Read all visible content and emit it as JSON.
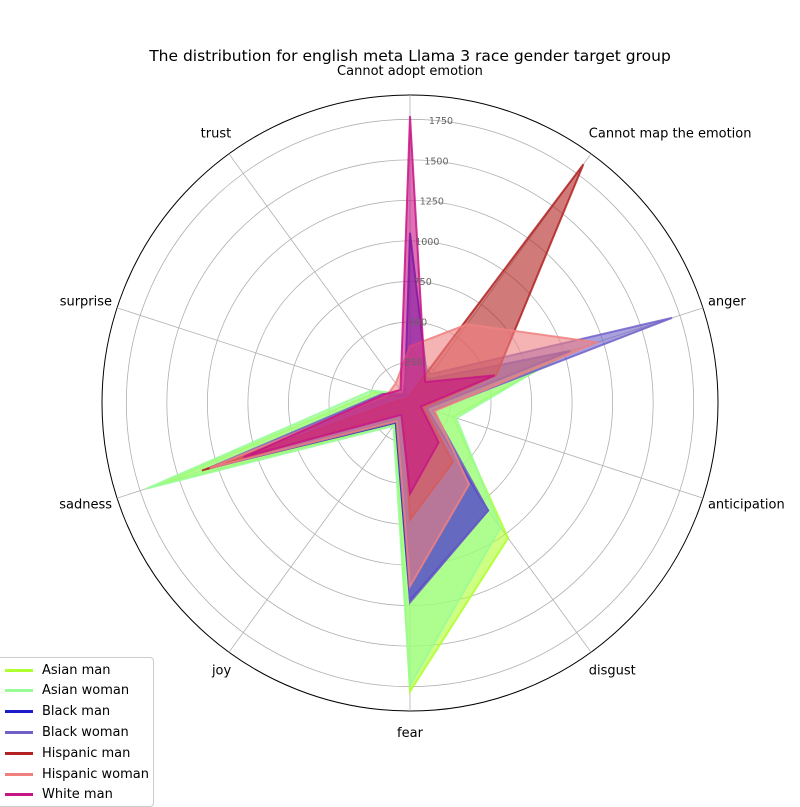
{
  "chart_data": {
    "type": "radar",
    "title": "The distribution for english meta Llama 3 race gender target group",
    "categories": [
      "Cannot adopt emotion",
      "Cannot map the emotion",
      "anger",
      "anticipation",
      "disgust",
      "fear",
      "joy",
      "sadness",
      "surprise",
      "trust"
    ],
    "rticks": [
      250,
      500,
      750,
      1000,
      1250,
      1500,
      1750
    ],
    "rtick_labels": [
      "250",
      "500",
      "750",
      "1000",
      "1250",
      "1500",
      "1750"
    ],
    "rmax": 1900,
    "grid": true,
    "legend_position": "lower-left",
    "series": [
      {
        "name": "Asian man",
        "color": "#adff2f",
        "values": [
          40,
          120,
          1060,
          280,
          1030,
          1780,
          160,
          1640,
          220,
          60
        ]
      },
      {
        "name": "Asian woman",
        "color": "#98fb98",
        "values": [
          50,
          150,
          1030,
          300,
          950,
          1740,
          175,
          1710,
          250,
          70
        ]
      },
      {
        "name": "Black man",
        "color": "#1c1cc8",
        "values": [
          1050,
          180,
          1040,
          110,
          820,
          1220,
          150,
          1300,
          150,
          55
        ]
      },
      {
        "name": "Black woman",
        "color": "#7060c8",
        "values": [
          350,
          220,
          1700,
          150,
          820,
          1230,
          110,
          1320,
          180,
          70
        ]
      },
      {
        "name": "Hispanic man",
        "color": "#b22222",
        "values": [
          50,
          1820,
          560,
          90,
          450,
          720,
          60,
          1350,
          60,
          30
        ]
      },
      {
        "name": "Hispanic woman",
        "color": "#f08080",
        "values": [
          350,
          600,
          1210,
          160,
          620,
          1130,
          140,
          1300,
          150,
          150
        ]
      },
      {
        "name": "White man",
        "color": "#c71585",
        "values": [
          1770,
          160,
          550,
          70,
          300,
          560,
          90,
          1080,
          170,
          100
        ]
      }
    ]
  }
}
